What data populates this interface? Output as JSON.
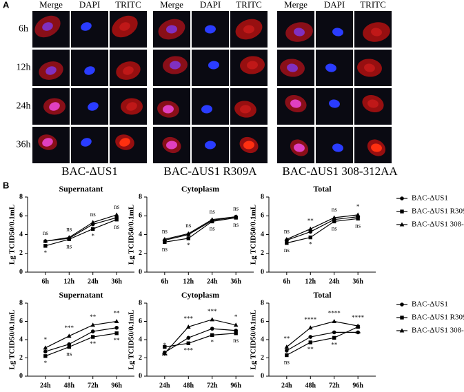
{
  "panel_a": {
    "label": "A",
    "columns": [
      "Merge",
      "DAPI",
      "TRITC"
    ],
    "rows": [
      "6h",
      "12h",
      "24h",
      "36h"
    ],
    "groups": [
      "BAC-ΔUS1",
      "BAC-ΔUS1 R309A",
      "BAC-ΔUS1 308-312AA"
    ]
  },
  "panel_b_label": "B",
  "chart_data": [
    {
      "type": "line",
      "title": "Supernatant",
      "y_label": "Lg TCID50/0.1mL",
      "categories": [
        "6h",
        "12h",
        "24h",
        "36h"
      ],
      "ylim": [
        0,
        8
      ],
      "yticks": [
        0,
        2,
        4,
        6,
        8
      ],
      "series": [
        {
          "name": "BAC-ΔUS1",
          "color": "#000000",
          "marker": "circle",
          "values": [
            3.3,
            3.6,
            5.1,
            5.8
          ]
        },
        {
          "name": "BAC-ΔUS1 R309A",
          "color": "#000000",
          "marker": "square",
          "values": [
            2.8,
            3.5,
            4.6,
            5.6
          ],
          "annotation_position": "below",
          "annotations": [
            "*",
            "ns",
            "*",
            "ns"
          ]
        },
        {
          "name": "BAC-ΔUS1 308-312AA",
          "color": "#000000",
          "marker": "triangle",
          "values": [
            3.3,
            3.7,
            5.3,
            6.1
          ],
          "annotation_position": "above",
          "annotations": [
            "ns",
            "ns",
            "ns",
            "ns"
          ]
        }
      ]
    },
    {
      "type": "line",
      "title": "Cytoplasm",
      "y_label": "Lg TCID50/0.1mL",
      "categories": [
        "6h",
        "12h",
        "24h",
        "36h"
      ],
      "ylim": [
        0,
        8
      ],
      "yticks": [
        0,
        2,
        4,
        6,
        8
      ],
      "series": [
        {
          "name": "BAC-ΔUS1",
          "color": "#000000",
          "marker": "circle",
          "values": [
            3.4,
            4.0,
            5.5,
            5.9
          ]
        },
        {
          "name": "BAC-ΔUS1 R309A",
          "color": "#000000",
          "marker": "square",
          "values": [
            3.2,
            3.6,
            5.4,
            5.8
          ],
          "annotation_position": "below",
          "annotations": [
            "ns",
            "*",
            "ns",
            "ns"
          ]
        },
        {
          "name": "BAC-ΔUS1 308-312AA",
          "color": "#000000",
          "marker": "triangle",
          "values": [
            3.5,
            4.1,
            5.6,
            5.9
          ],
          "annotation_position": "above",
          "annotations": [
            "ns",
            "ns",
            "ns",
            "ns"
          ]
        }
      ]
    },
    {
      "type": "line",
      "title": "Total",
      "y_label": "Lg TCID50/0.1mL",
      "categories": [
        "6h",
        "12h",
        "24h",
        "36h"
      ],
      "ylim": [
        0,
        8
      ],
      "yticks": [
        0,
        2,
        4,
        6,
        8
      ],
      "legend": "right",
      "series": [
        {
          "name": "BAC-ΔUS1",
          "color": "#000000",
          "marker": "circle",
          "values": [
            3.4,
            4.3,
            5.6,
            5.9
          ]
        },
        {
          "name": "BAC-ΔUS1 R309A",
          "color": "#000000",
          "marker": "square",
          "values": [
            3.1,
            3.7,
            5.4,
            5.7
          ],
          "annotation_position": "below",
          "annotations": [
            "ns",
            "*",
            "ns",
            "ns"
          ]
        },
        {
          "name": "BAC-ΔUS1 308-312AA",
          "color": "#000000",
          "marker": "triangle",
          "values": [
            3.5,
            4.6,
            5.8,
            6.1
          ],
          "annotation_position": "above",
          "annotations": [
            "ns",
            "**",
            "ns",
            "*"
          ]
        }
      ]
    },
    {
      "type": "line",
      "title": "Supernatant",
      "y_label": "Lg TCID50/0.1mL",
      "categories": [
        "24h",
        "48h",
        "72h",
        "96h"
      ],
      "ylim": [
        0,
        8
      ],
      "yticks": [
        0,
        2,
        4,
        6,
        8
      ],
      "series": [
        {
          "name": "BAC-ΔUS1",
          "color": "#000000",
          "marker": "circle",
          "values": [
            2.7,
            3.5,
            4.9,
            5.3
          ]
        },
        {
          "name": "BAC-ΔUS1 R309A",
          "color": "#000000",
          "marker": "square",
          "values": [
            2.2,
            3.2,
            4.3,
            4.7
          ],
          "annotation_position": "below",
          "annotations": [
            "*",
            "ns",
            "**",
            "**"
          ]
        },
        {
          "name": "BAC-ΔUS1 308-312AA",
          "color": "#000000",
          "marker": "triangle",
          "values": [
            3.1,
            4.4,
            5.6,
            6.0
          ],
          "annotation_position": "above",
          "annotations": [
            "*",
            "***",
            "**",
            "**"
          ]
        }
      ]
    },
    {
      "type": "line",
      "title": "Cytoplasm",
      "y_label": "Lg TCID50/0.1mL",
      "categories": [
        "24h",
        "48h",
        "72h",
        "96h"
      ],
      "ylim": [
        0,
        8
      ],
      "yticks": [
        0,
        2,
        4,
        6,
        8
      ],
      "series": [
        {
          "name": "BAC-ΔUS1",
          "color": "#000000",
          "marker": "circle",
          "values": [
            2.6,
            4.2,
            5.2,
            5.0
          ]
        },
        {
          "name": "BAC-ΔUS1 R309A",
          "color": "#000000",
          "marker": "square",
          "values": [
            3.2,
            3.6,
            4.5,
            4.7
          ],
          "annotation_position": "below",
          "annotations": [
            "ns",
            "***",
            "*",
            "ns"
          ]
        },
        {
          "name": "BAC-ΔUS1 308-312AA",
          "color": "#000000",
          "marker": "triangle",
          "values": [
            2.5,
            5.4,
            6.2,
            5.6
          ],
          "annotation_position": "above",
          "annotations": [
            "*",
            "***",
            "***",
            "*"
          ]
        }
      ]
    },
    {
      "type": "line",
      "title": "Total",
      "y_label": "Lg TCID50/0.1mL",
      "categories": [
        "24h",
        "48h",
        "72h",
        "96h"
      ],
      "ylim": [
        0,
        8
      ],
      "yticks": [
        0,
        2,
        4,
        6,
        8
      ],
      "legend": "right",
      "series": [
        {
          "name": "BAC-ΔUS1",
          "color": "#000000",
          "marker": "circle",
          "values": [
            2.8,
            4.3,
            4.8,
            4.8
          ]
        },
        {
          "name": "BAC-ΔUS1 R309A",
          "color": "#000000",
          "marker": "square",
          "values": [
            2.3,
            3.7,
            4.2,
            5.4
          ],
          "annotation_position": "below",
          "annotations": [
            "ns",
            "**",
            "**",
            "**"
          ]
        },
        {
          "name": "BAC-ΔUS1 308-312AA",
          "color": "#000000",
          "marker": "triangle",
          "values": [
            3.2,
            5.3,
            6.0,
            5.5
          ],
          "annotation_position": "above",
          "annotations": [
            "**",
            "****",
            "****",
            "****"
          ]
        }
      ]
    }
  ]
}
